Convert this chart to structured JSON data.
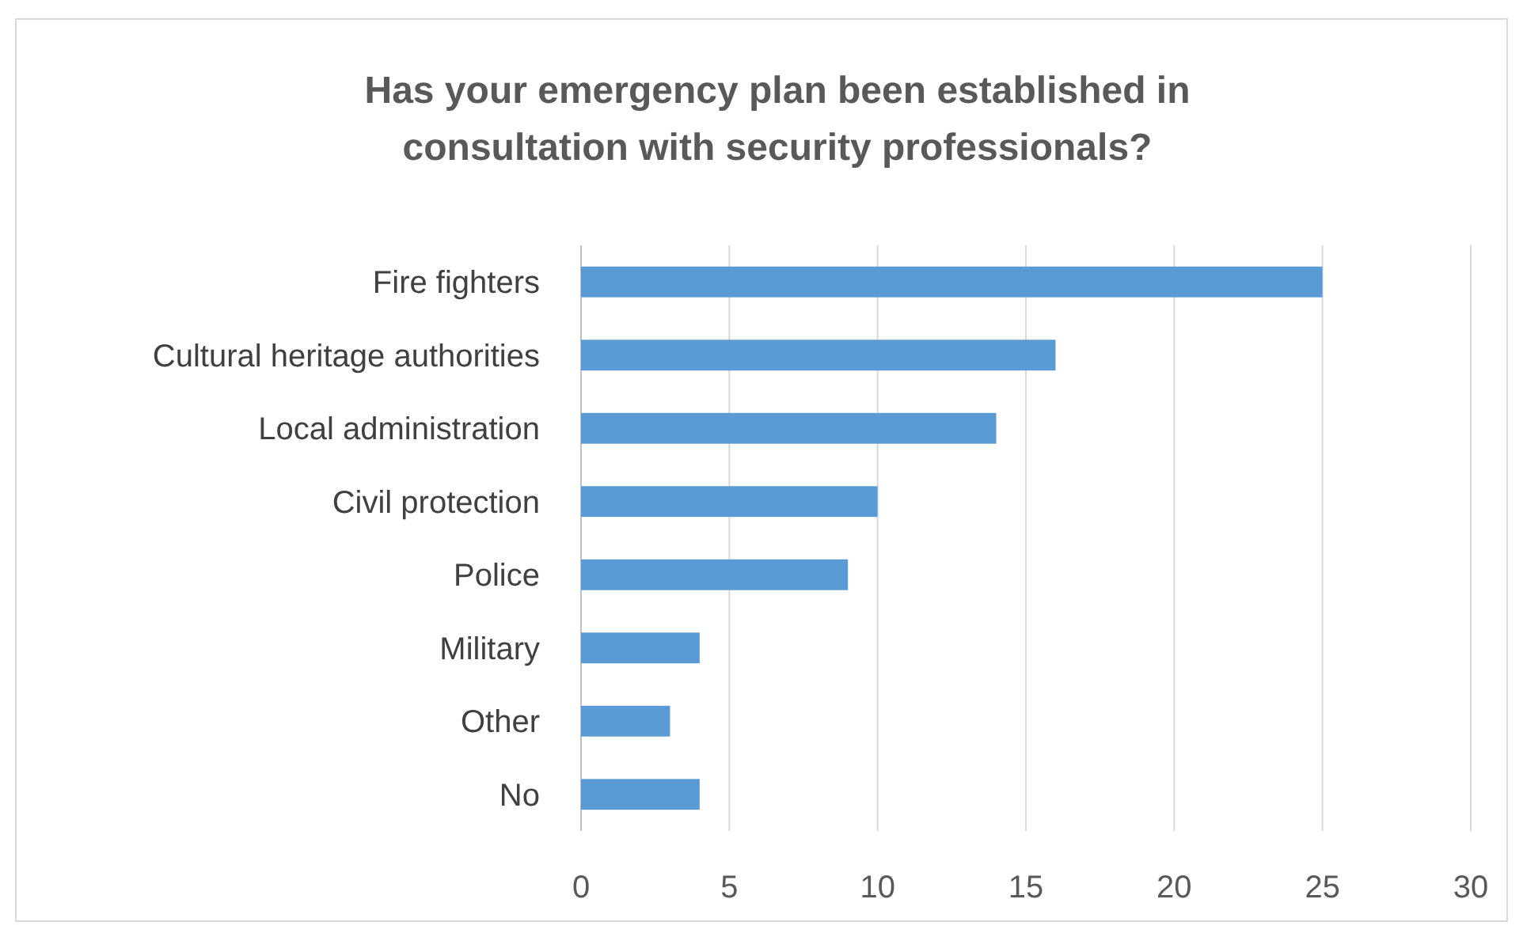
{
  "chart_data": {
    "type": "bar",
    "orientation": "horizontal",
    "title": "Has your emergency plan been established in consultation with security professionals?",
    "categories": [
      "Fire fighters",
      "Cultural heritage authorities",
      "Local administration",
      "Civil protection",
      "Police",
      "Military",
      "Other",
      "No"
    ],
    "values": [
      25,
      16,
      14,
      10,
      9,
      4,
      3,
      4
    ],
    "color": "#5b9bd5",
    "xlim": [
      0,
      30
    ],
    "xticks": [
      0,
      5,
      10,
      15,
      20,
      25,
      30
    ],
    "grid": "x"
  }
}
